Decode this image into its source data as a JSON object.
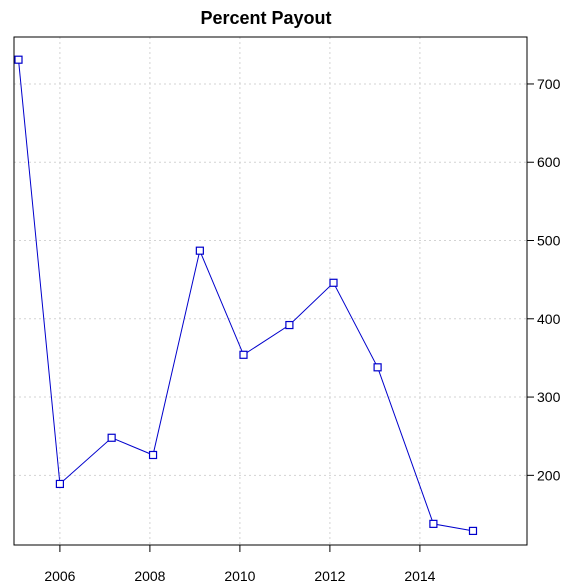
{
  "chart_data": {
    "type": "line",
    "title": "Percent Payout",
    "xlabel": "",
    "ylabel": "",
    "x": [
      2005.08,
      2006.0,
      2007.15,
      2008.07,
      2009.11,
      2010.08,
      2011.1,
      2012.08,
      2013.06,
      2014.3,
      2015.18
    ],
    "series": [
      {
        "values": [
          731,
          189,
          248,
          226,
          487,
          354,
          392,
          446,
          338,
          138,
          129
        ],
        "color": "#0000cc",
        "marker": "square"
      }
    ],
    "xlim": [
      2004.98,
      2016.38
    ],
    "ylim": [
      111,
      760
    ],
    "x_ticks": [
      2006,
      2008,
      2010,
      2012,
      2014
    ],
    "x_tick_labels": [
      "2006",
      "2008",
      "2010",
      "2012",
      "2014"
    ],
    "y_ticks": [
      200,
      300,
      400,
      500,
      600,
      700
    ],
    "y_tick_labels": [
      "200",
      "300",
      "400",
      "500",
      "600",
      "700"
    ],
    "y_axis_side": "right",
    "grid": true,
    "grid_color": "#d3d3d3",
    "axis_color": "#000000"
  }
}
